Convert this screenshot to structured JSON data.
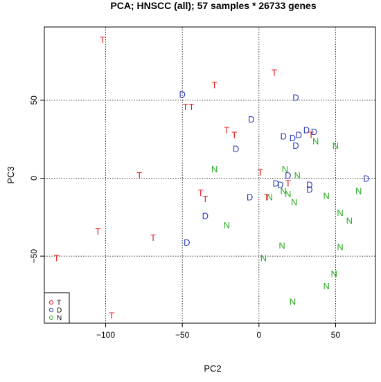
{
  "chart_data": {
    "type": "scatter",
    "title": "PCA; HNSCC (all);  57 samples * 26733 genes",
    "xlabel": "PC2",
    "ylabel": "PC3",
    "xlim": [
      -140,
      76
    ],
    "ylim": [
      -93,
      97
    ],
    "x_ticks": [
      -100,
      -50,
      0,
      50
    ],
    "y_ticks": [
      -50,
      0,
      50
    ],
    "grid": true,
    "legend_position": "bottom-left",
    "series": [
      {
        "name": "T",
        "color": "#e8171a",
        "points": [
          [
            -102,
            89
          ],
          [
            -29,
            60
          ],
          [
            10,
            68
          ],
          [
            -48,
            46
          ],
          [
            -44,
            46
          ],
          [
            -21,
            31
          ],
          [
            -16,
            28
          ],
          [
            -78,
            2
          ],
          [
            1,
            4
          ],
          [
            -38,
            -9
          ],
          [
            -35,
            -13
          ],
          [
            5,
            -12
          ],
          [
            19,
            -3
          ],
          [
            34,
            28
          ],
          [
            -105,
            -34
          ],
          [
            -69,
            -38
          ],
          [
            -132,
            -51
          ],
          [
            -96,
            -88
          ]
        ]
      },
      {
        "name": "D",
        "color": "#2b3cba",
        "points": [
          [
            -50,
            54
          ],
          [
            24,
            52
          ],
          [
            -5,
            38
          ],
          [
            31,
            31
          ],
          [
            36,
            30
          ],
          [
            26,
            28
          ],
          [
            22,
            26
          ],
          [
            16,
            27
          ],
          [
            -15,
            19
          ],
          [
            24,
            21
          ],
          [
            19,
            2
          ],
          [
            11,
            -3
          ],
          [
            14,
            -4
          ],
          [
            33,
            -4
          ],
          [
            33,
            -7
          ],
          [
            70,
            0
          ],
          [
            -6,
            -12
          ],
          [
            -35,
            -24
          ],
          [
            -47,
            -41
          ]
        ]
      },
      {
        "name": "N",
        "color": "#2aaa22",
        "points": [
          [
            37,
            24
          ],
          [
            50,
            21
          ],
          [
            -29,
            6
          ],
          [
            17,
            6
          ],
          [
            25,
            2
          ],
          [
            16,
            -8
          ],
          [
            19,
            -10
          ],
          [
            7,
            -12
          ],
          [
            23,
            -15
          ],
          [
            44,
            -11
          ],
          [
            65,
            -8
          ],
          [
            53,
            -22
          ],
          [
            59,
            -27
          ],
          [
            -21,
            -30
          ],
          [
            15,
            -43
          ],
          [
            53,
            -44
          ],
          [
            3,
            -51
          ],
          [
            49,
            -61
          ],
          [
            44,
            -69
          ],
          [
            22,
            -79
          ]
        ]
      }
    ]
  }
}
